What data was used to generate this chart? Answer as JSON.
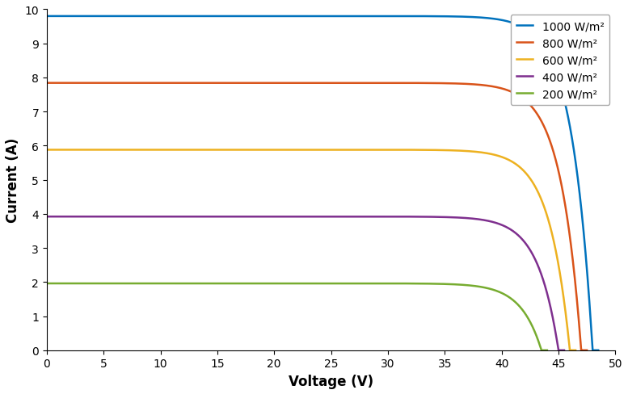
{
  "title": "",
  "xlabel": "Voltage (V)",
  "ylabel": "Current (A)",
  "xlim": [
    0,
    50
  ],
  "ylim": [
    0,
    10
  ],
  "xticks": [
    0,
    5,
    10,
    15,
    20,
    25,
    30,
    35,
    40,
    45,
    50
  ],
  "yticks": [
    0,
    1,
    2,
    3,
    4,
    5,
    6,
    7,
    8,
    9,
    10
  ],
  "curves": [
    {
      "label": "1000 W/m²",
      "color": "#0072BD",
      "Isc": 9.8,
      "Voc": 48.0,
      "a": 1.8
    },
    {
      "label": "800 W/m²",
      "color": "#D95319",
      "Isc": 7.84,
      "Voc": 47.0,
      "a": 1.8
    },
    {
      "label": "600 W/m²",
      "color": "#EDB120",
      "Isc": 5.88,
      "Voc": 46.0,
      "a": 1.8
    },
    {
      "label": "400 W/m²",
      "color": "#7E2F8E",
      "Isc": 3.92,
      "Voc": 45.0,
      "a": 1.8
    },
    {
      "label": "200 W/m²",
      "color": "#77AC30",
      "Isc": 1.96,
      "Voc": 43.5,
      "a": 1.8
    }
  ],
  "legend_fontsize": 10,
  "axis_fontsize": 12,
  "tick_fontsize": 10,
  "linewidth": 1.8,
  "figsize": [
    7.77,
    4.89
  ],
  "dpi": 100
}
